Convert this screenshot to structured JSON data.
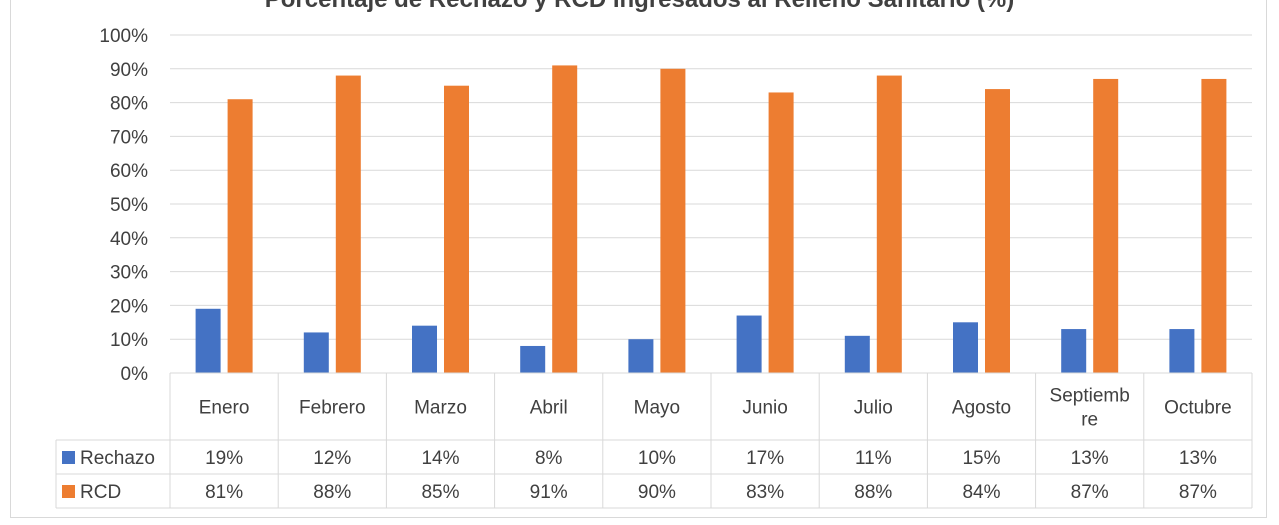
{
  "chart_data": {
    "type": "bar",
    "title": "Porcentaje de Rechazo y RCD Ingresados al Relleno Sanitario (%)",
    "categories": [
      "Enero",
      "Febrero",
      "Marzo",
      "Abril",
      "Mayo",
      "Junio",
      "Julio",
      "Agosto",
      "Septiembre",
      "Octubre"
    ],
    "category_labels": [
      [
        "Enero"
      ],
      [
        "Febrero"
      ],
      [
        "Marzo"
      ],
      [
        "Abril"
      ],
      [
        "Mayo"
      ],
      [
        "Junio"
      ],
      [
        "Julio"
      ],
      [
        "Agosto"
      ],
      [
        "Septiemb",
        "re"
      ],
      [
        "Octubre"
      ]
    ],
    "series": [
      {
        "name": "Rechazo",
        "color": "#4472c4",
        "values": [
          19,
          12,
          14,
          8,
          10,
          17,
          11,
          15,
          13,
          13
        ],
        "labels": [
          "19%",
          "12%",
          "14%",
          "8%",
          "10%",
          "17%",
          "11%",
          "15%",
          "13%",
          "13%"
        ]
      },
      {
        "name": "RCD",
        "color": "#ed7d31",
        "values": [
          81,
          88,
          85,
          91,
          90,
          83,
          88,
          84,
          87,
          87
        ],
        "labels": [
          "81%",
          "88%",
          "85%",
          "91%",
          "90%",
          "83%",
          "88%",
          "84%",
          "87%",
          "87%"
        ]
      }
    ],
    "yticks": [
      "0%",
      "10%",
      "20%",
      "30%",
      "40%",
      "50%",
      "60%",
      "70%",
      "80%",
      "90%",
      "100%"
    ],
    "ylim": [
      0,
      100
    ],
    "grid": true,
    "legend": "data-table"
  }
}
